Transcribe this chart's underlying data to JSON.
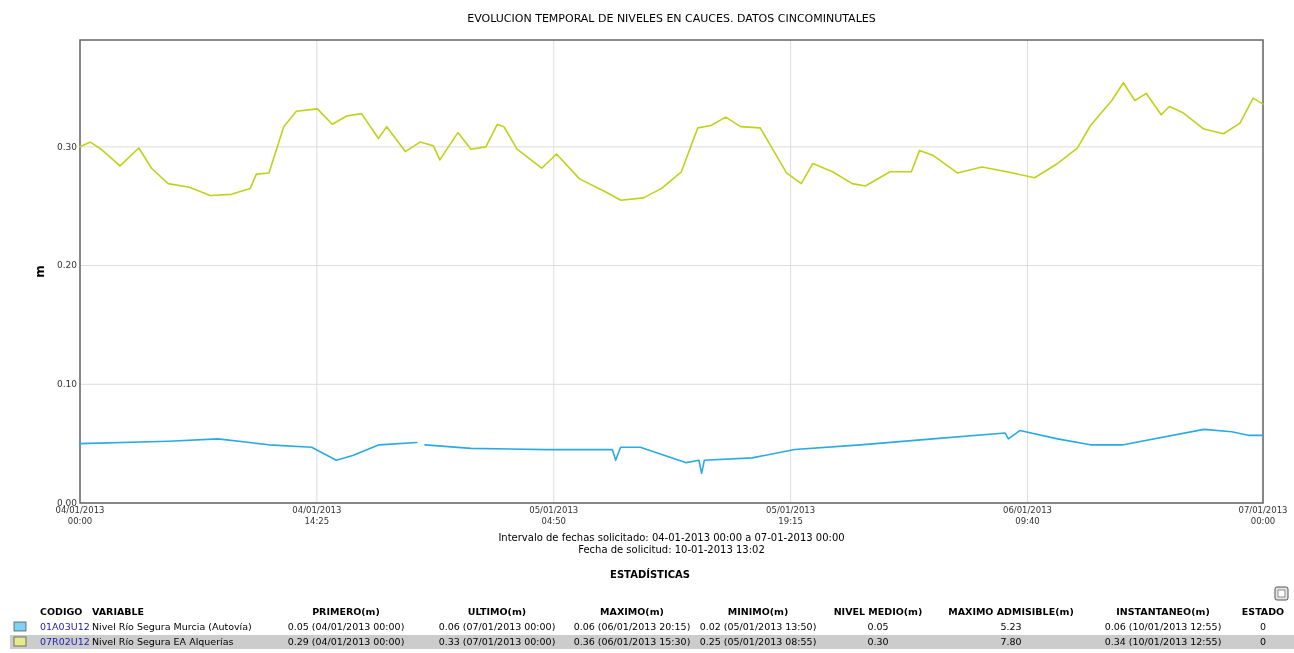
{
  "chart_data": [
    {
      "type": "line",
      "title": "EVOLUCION TEMPORAL DE NIVELES EN CAUCES. DATOS CINCOMINUTALES",
      "ylabel": "m",
      "annotations": [
        "Intervalo de fechas solicitado: 04-01-2013 00:00 a 07-01-2013 00:00",
        "Fecha de solicitud: 10-01-2013 13:02"
      ],
      "xlim": [
        "2013-01-04T00:00",
        "2013-01-07T00:00"
      ],
      "xticks": [
        {
          "value": "2013-01-04T00:00",
          "label": "04/01/2013\n00:00"
        },
        {
          "value": "2013-01-04T14:25",
          "label": "04/01/2013\n14:25"
        },
        {
          "value": "2013-01-05T04:50",
          "label": "05/01/2013\n04:50"
        },
        {
          "value": "2013-01-05T19:15",
          "label": "05/01/2013\n19:15"
        },
        {
          "value": "2013-01-06T09:40",
          "label": "06/01/2013\n09:40"
        },
        {
          "value": "2013-01-07T00:00",
          "label": "07/01/2013\n00:00"
        }
      ],
      "ylim": [
        0,
        0.39
      ],
      "yticks": [
        {
          "value": 0,
          "label": "0.00"
        },
        {
          "value": 0.1,
          "label": "0.10"
        },
        {
          "value": 0.2,
          "label": "0.20"
        },
        {
          "value": 0.3,
          "label": "0.30"
        }
      ],
      "grid": true,
      "marker": "none",
      "line_style": "solid",
      "series": [
        {
          "color": "#29abe2",
          "x": [
            "2013-01-04T00:00",
            "2013-01-04T05:24",
            "2013-01-04T08:24",
            "2013-01-04T11:30",
            "2013-01-04T14:06",
            "2013-01-04T15:36",
            "2013-01-04T16:36",
            "2013-01-04T18:12",
            "2013-01-04T20:30",
            "2013-01-04T20:45",
            "2013-01-04T21:00",
            "2013-01-04T23:48",
            "2013-01-05T04:24",
            "2013-01-05T07:30",
            "2013-01-05T08:24",
            "2013-01-05T08:36",
            "2013-01-05T08:54",
            "2013-01-05T10:06",
            "2013-01-05T12:54",
            "2013-01-05T13:40",
            "2013-01-05T13:50",
            "2013-01-05T14:00",
            "2013-01-05T16:54",
            "2013-01-05T19:30",
            "2013-01-05T23:30",
            "2013-01-06T03:54",
            "2013-01-06T08:18",
            "2013-01-06T08:30",
            "2013-01-06T09:12",
            "2013-01-06T11:30",
            "2013-01-06T13:30",
            "2013-01-06T15:30",
            "2013-01-06T20:24",
            "2013-01-06T22:06",
            "2013-01-06T23:06",
            "2013-01-07T00:00"
          ],
          "values": [
            0.05,
            0.052,
            0.054,
            0.049,
            0.047,
            0.036,
            0.04,
            0.049,
            0.051,
            null,
            0.049,
            0.046,
            0.045,
            0.045,
            0.045,
            0.036,
            0.047,
            0.047,
            0.034,
            0.036,
            0.025,
            0.036,
            0.038,
            0.045,
            0.049,
            0.054,
            0.059,
            0.054,
            0.061,
            0.054,
            0.049,
            0.049,
            0.062,
            0.06,
            0.057,
            0.057
          ]
        },
        {
          "color": "#bfd21a",
          "x": [
            "2013-01-04T00:00",
            "2013-01-04T00:38",
            "2013-01-04T01:17",
            "2013-01-04T02:26",
            "2013-01-04T02:49",
            "2013-01-04T03:35",
            "2013-01-04T04:21",
            "2013-01-04T05:22",
            "2013-01-04T06:39",
            "2013-01-04T07:56",
            "2013-01-04T09:13",
            "2013-01-04T10:22",
            "2013-01-04T10:44",
            "2013-01-04T11:30",
            "2013-01-04T12:24",
            "2013-01-04T13:10",
            "2013-01-04T14:27",
            "2013-01-04T15:21",
            "2013-01-04T16:14",
            "2013-01-04T17:08",
            "2013-01-04T18:10",
            "2013-01-04T18:40",
            "2013-01-04T19:48",
            "2013-01-04T20:42",
            "2013-01-04T21:30",
            "2013-01-04T21:54",
            "2013-01-04T23:00",
            "2013-01-04T23:48",
            "2013-01-05T00:42",
            "2013-01-05T01:24",
            "2013-01-05T01:48",
            "2013-01-05T02:36",
            "2013-01-05T04:06",
            "2013-01-05T05:00",
            "2013-01-05T06:24",
            "2013-01-05T08:00",
            "2013-01-05T08:55",
            "2013-01-05T10:18",
            "2013-01-05T11:24",
            "2013-01-05T12:36",
            "2013-01-05T13:36",
            "2013-01-05T14:24",
            "2013-01-05T15:18",
            "2013-01-05T16:12",
            "2013-01-05T17:24",
            "2013-01-05T18:12",
            "2013-01-05T19:00",
            "2013-01-05T19:54",
            "2013-01-05T20:36",
            "2013-01-05T21:48",
            "2013-01-05T23:00",
            "2013-01-05T23:48",
            "2013-01-06T01:18",
            "2013-01-06T02:36",
            "2013-01-06T03:06",
            "2013-01-06T03:54",
            "2013-01-06T05:24",
            "2013-01-06T06:54",
            "2013-01-06T08:24",
            "2013-01-06T10:06",
            "2013-01-06T11:30",
            "2013-01-06T12:42",
            "2013-01-06T13:30",
            "2013-01-06T14:48",
            "2013-01-06T15:30",
            "2013-01-06T16:12",
            "2013-01-06T16:54",
            "2013-01-06T17:48",
            "2013-01-06T18:18",
            "2013-01-06T19:06",
            "2013-01-06T20:24",
            "2013-01-06T21:36",
            "2013-01-06T22:36",
            "2013-01-06T23:24",
            "2013-01-07T00:00"
          ],
          "values": [
            0.3,
            0.304,
            0.298,
            0.284,
            0.289,
            0.299,
            0.282,
            0.269,
            0.266,
            0.259,
            0.26,
            0.265,
            0.277,
            0.278,
            0.317,
            0.33,
            0.332,
            0.319,
            0.326,
            0.328,
            0.307,
            0.317,
            0.296,
            0.304,
            0.301,
            0.289,
            0.312,
            0.298,
            0.3,
            0.319,
            0.317,
            0.298,
            0.282,
            0.294,
            0.273,
            0.262,
            0.255,
            0.257,
            0.265,
            0.279,
            0.316,
            0.318,
            0.325,
            0.317,
            0.316,
            0.297,
            0.278,
            0.269,
            0.286,
            0.279,
            0.269,
            0.267,
            0.279,
            0.279,
            0.297,
            0.293,
            0.278,
            0.283,
            0.279,
            0.274,
            0.286,
            0.299,
            0.318,
            0.339,
            0.354,
            0.339,
            0.345,
            0.327,
            0.334,
            0.329,
            0.315,
            0.311,
            0.32,
            0.341,
            0.336
          ]
        }
      ]
    },
    {
      "type": "other",
      "title": "ESTADÍSTICAS",
      "categories": [
        null,
        "CODIGO",
        "VARIABLE",
        "PRIMERO(m)",
        "ULTIMO(m)",
        "MAXIMO(m)",
        "MINIMO(m)",
        "NIVEL MEDIO(m)",
        "MAXIMO ADMISIBLE(m)",
        "INSTANTANEO(m)",
        "ESTADO"
      ],
      "colors": [
        "#7fd3f2",
        "#e6ea8a"
      ],
      "cell_labels": [
        [
          null,
          "01A03U12",
          "Nivel Río Segura Murcia (Autovía)",
          "0.05 (04/01/2013 00:00)",
          "0.06 (07/01/2013 00:00)",
          "0.06 (06/01/2013 20:15)",
          "0.02 (05/01/2013 13:50)",
          "0.05",
          "5.23",
          "0.06 (10/01/2013 12:55)",
          "0"
        ],
        [
          null,
          "07R02U12",
          "Nivel Río Segura EA Alquerías",
          "0.29 (04/01/2013 00:00)",
          "0.33 (07/01/2013 00:00)",
          "0.36 (06/01/2013 15:30)",
          "0.25 (05/01/2013 08:55)",
          "0.30",
          "7.80",
          "0.34 (10/01/2013 12:55)",
          "0"
        ]
      ]
    }
  ]
}
